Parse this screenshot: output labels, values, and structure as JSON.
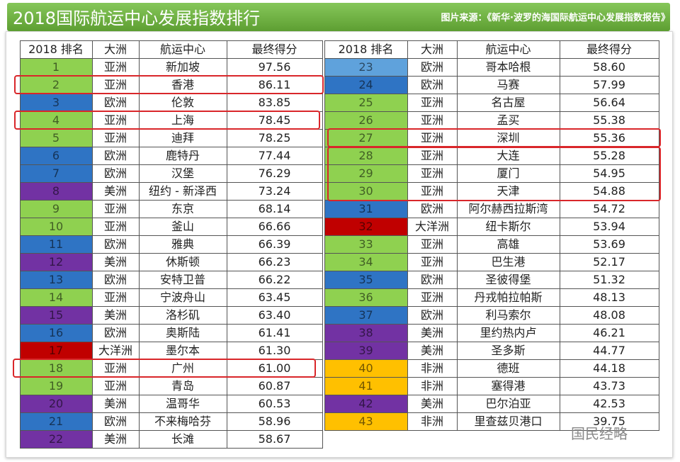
{
  "header": {
    "title": "2018国际航运中心发展指数排行",
    "source": "图片来源：《新华·波罗的海国际航运中心发展指数报告》"
  },
  "columns": [
    "2018 排名",
    "大洲",
    "航运中心",
    "最终得分"
  ],
  "table_left": {
    "rows": [
      {
        "rank": "1",
        "continent": "亚洲",
        "center": "新加坡",
        "score": "97.56",
        "color": "#8fd150"
      },
      {
        "rank": "2",
        "continent": "亚洲",
        "center": "香港",
        "score": "86.11",
        "color": "#8fd150"
      },
      {
        "rank": "3",
        "continent": "欧洲",
        "center": "伦敦",
        "score": "83.85",
        "color": "#2f74c4"
      },
      {
        "rank": "4",
        "continent": "亚洲",
        "center": "上海",
        "score": "78.45",
        "color": "#8fd150"
      },
      {
        "rank": "5",
        "continent": "亚洲",
        "center": "迪拜",
        "score": "78.25",
        "color": "#8fd150"
      },
      {
        "rank": "6",
        "continent": "欧洲",
        "center": "鹿特丹",
        "score": "77.44",
        "color": "#2f74c4"
      },
      {
        "rank": "7",
        "continent": "欧洲",
        "center": "汉堡",
        "score": "76.29",
        "color": "#2f74c4"
      },
      {
        "rank": "8",
        "continent": "美洲",
        "center": "纽约 - 新泽西",
        "score": "73.24",
        "color": "#7232a3"
      },
      {
        "rank": "9",
        "continent": "亚洲",
        "center": "东京",
        "score": "68.14",
        "color": "#8fd150"
      },
      {
        "rank": "10",
        "continent": "亚洲",
        "center": "釜山",
        "score": "66.66",
        "color": "#8fd150"
      },
      {
        "rank": "11",
        "continent": "欧洲",
        "center": "雅典",
        "score": "66.39",
        "color": "#2f74c4"
      },
      {
        "rank": "12",
        "continent": "美洲",
        "center": "休斯顿",
        "score": "66.23",
        "color": "#7232a3"
      },
      {
        "rank": "13",
        "continent": "欧洲",
        "center": "安特卫普",
        "score": "66.22",
        "color": "#2f74c4"
      },
      {
        "rank": "14",
        "continent": "亚洲",
        "center": "宁波舟山",
        "score": "63.45",
        "color": "#8fd150"
      },
      {
        "rank": "15",
        "continent": "美洲",
        "center": "洛杉矶",
        "score": "63.40",
        "color": "#7232a3"
      },
      {
        "rank": "16",
        "continent": "欧洲",
        "center": "奥斯陆",
        "score": "61.41",
        "color": "#2f74c4"
      },
      {
        "rank": "17",
        "continent": "大洋洲",
        "center": "墨尔本",
        "score": "61.30",
        "color": "#c00000"
      },
      {
        "rank": "18",
        "continent": "亚洲",
        "center": "广州",
        "score": "61.00",
        "color": "#8fd150"
      },
      {
        "rank": "19",
        "continent": "亚洲",
        "center": "青岛",
        "score": "60.87",
        "color": "#8fd150"
      },
      {
        "rank": "20",
        "continent": "美洲",
        "center": "温哥华",
        "score": "60.53",
        "color": "#7232a3"
      },
      {
        "rank": "21",
        "continent": "欧洲",
        "center": "不来梅哈芬",
        "score": "58.96",
        "color": "#2f74c4"
      },
      {
        "rank": "22",
        "continent": "美洲",
        "center": "长滩",
        "score": "58.67",
        "color": "#7232a3"
      }
    ]
  },
  "table_right": {
    "rows": [
      {
        "rank": "23",
        "continent": "欧洲",
        "center": "哥本哈根",
        "score": "58.60",
        "color": "#5fa2dc"
      },
      {
        "rank": "24",
        "continent": "欧洲",
        "center": "马赛",
        "score": "57.99",
        "color": "#2f74c4"
      },
      {
        "rank": "25",
        "continent": "亚洲",
        "center": "名古屋",
        "score": "56.64",
        "color": "#8fd150"
      },
      {
        "rank": "26",
        "continent": "亚洲",
        "center": "孟买",
        "score": "55.38",
        "color": "#8fd150"
      },
      {
        "rank": "27",
        "continent": "亚洲",
        "center": "深圳",
        "score": "55.36",
        "color": "#8fd150"
      },
      {
        "rank": "28",
        "continent": "亚洲",
        "center": "大连",
        "score": "55.28",
        "color": "#8fd150"
      },
      {
        "rank": "29",
        "continent": "亚洲",
        "center": "厦门",
        "score": "54.95",
        "color": "#8fd150"
      },
      {
        "rank": "30",
        "continent": "亚洲",
        "center": "天津",
        "score": "54.88",
        "color": "#8fd150"
      },
      {
        "rank": "31",
        "continent": "欧洲",
        "center": "阿尔赫西拉斯湾",
        "score": "54.72",
        "color": "#2f74c4"
      },
      {
        "rank": "32",
        "continent": "大洋洲",
        "center": "纽卡斯尔",
        "score": "53.94",
        "color": "#c00000"
      },
      {
        "rank": "33",
        "continent": "亚洲",
        "center": "高雄",
        "score": "53.69",
        "color": "#8fd150"
      },
      {
        "rank": "34",
        "continent": "亚洲",
        "center": "巴生港",
        "score": "52.17",
        "color": "#8fd150"
      },
      {
        "rank": "35",
        "continent": "欧洲",
        "center": "圣彼得堡",
        "score": "51.32",
        "color": "#2f74c4"
      },
      {
        "rank": "36",
        "continent": "亚洲",
        "center": "丹戎帕拉帕斯",
        "score": "48.13",
        "color": "#8fd150"
      },
      {
        "rank": "37",
        "continent": "欧洲",
        "center": "利马索尔",
        "score": "48.08",
        "color": "#2f74c4"
      },
      {
        "rank": "38",
        "continent": "美洲",
        "center": "里约热内卢",
        "score": "46.21",
        "color": "#7232a3"
      },
      {
        "rank": "39",
        "continent": "美洲",
        "center": "圣多斯",
        "score": "44.77",
        "color": "#7232a3"
      },
      {
        "rank": "40",
        "continent": "非洲",
        "center": "德班",
        "score": "44.18",
        "color": "#ffc000"
      },
      {
        "rank": "41",
        "continent": "非洲",
        "center": "塞得港",
        "score": "43.73",
        "color": "#ffc000"
      },
      {
        "rank": "42",
        "continent": "美洲",
        "center": "巴尔泊亚",
        "score": "42.53",
        "color": "#7232a3"
      },
      {
        "rank": "43",
        "continent": "非洲",
        "center": "里查兹贝港口",
        "score": "39.75",
        "color": "#ffc000"
      }
    ]
  },
  "watermark": "国民经略"
}
